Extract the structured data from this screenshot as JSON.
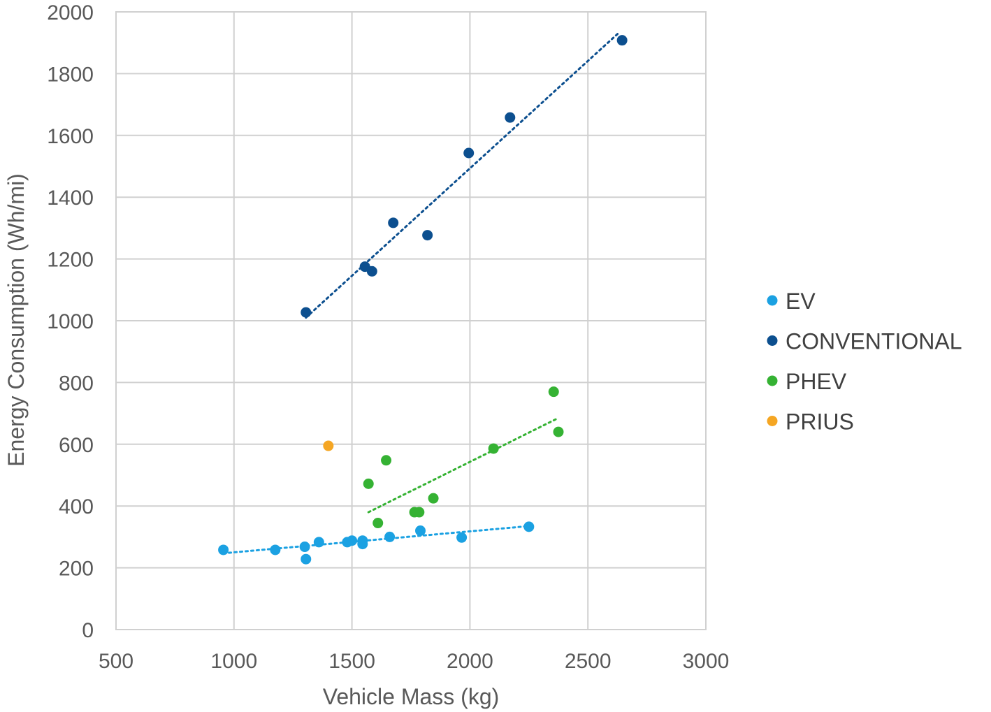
{
  "chart_data": {
    "type": "scatter",
    "title": "",
    "xlabel": "Vehicle Mass (kg)",
    "ylabel": "Energy Consumption (Wh/mi)",
    "xlim": [
      500,
      3000
    ],
    "ylim": [
      0,
      2000
    ],
    "xticks": [
      500,
      1000,
      1500,
      2000,
      2500,
      3000
    ],
    "yticks": [
      0,
      200,
      400,
      600,
      800,
      1000,
      1200,
      1400,
      1600,
      1800,
      2000
    ],
    "grid": true,
    "legend_position": "right",
    "series": [
      {
        "name": "EV",
        "color": "#1ba1e2",
        "points": [
          {
            "x": 955,
            "y": 258
          },
          {
            "x": 1175,
            "y": 258
          },
          {
            "x": 1300,
            "y": 268
          },
          {
            "x": 1305,
            "y": 228
          },
          {
            "x": 1360,
            "y": 283
          },
          {
            "x": 1480,
            "y": 283
          },
          {
            "x": 1500,
            "y": 288
          },
          {
            "x": 1545,
            "y": 288
          },
          {
            "x": 1545,
            "y": 277
          },
          {
            "x": 1660,
            "y": 300
          },
          {
            "x": 1790,
            "y": 320
          },
          {
            "x": 1965,
            "y": 298
          },
          {
            "x": 2250,
            "y": 333
          }
        ],
        "trendline": {
          "x": [
            955,
            2250
          ],
          "y": [
            247,
            335
          ]
        }
      },
      {
        "name": "CONVENTIONAL",
        "color": "#0c4f8f",
        "points": [
          {
            "x": 1305,
            "y": 1027
          },
          {
            "x": 1555,
            "y": 1175
          },
          {
            "x": 1585,
            "y": 1160
          },
          {
            "x": 1675,
            "y": 1317
          },
          {
            "x": 1820,
            "y": 1277
          },
          {
            "x": 1995,
            "y": 1543
          },
          {
            "x": 2170,
            "y": 1658
          },
          {
            "x": 2645,
            "y": 1908
          }
        ],
        "trendline": {
          "x": [
            1305,
            2635
          ],
          "y": [
            1010,
            1935
          ]
        }
      },
      {
        "name": "PHEV",
        "color": "#35b233",
        "points": [
          {
            "x": 1570,
            "y": 472
          },
          {
            "x": 1610,
            "y": 345
          },
          {
            "x": 1645,
            "y": 548
          },
          {
            "x": 1765,
            "y": 380
          },
          {
            "x": 1785,
            "y": 380
          },
          {
            "x": 1845,
            "y": 425
          },
          {
            "x": 2100,
            "y": 586
          },
          {
            "x": 2355,
            "y": 770
          },
          {
            "x": 2375,
            "y": 640
          }
        ],
        "trendline": {
          "x": [
            1570,
            2375
          ],
          "y": [
            380,
            685
          ]
        }
      },
      {
        "name": "PRIUS",
        "color": "#f5a623",
        "points": [
          {
            "x": 1400,
            "y": 595
          }
        ],
        "trendline": null
      }
    ]
  }
}
